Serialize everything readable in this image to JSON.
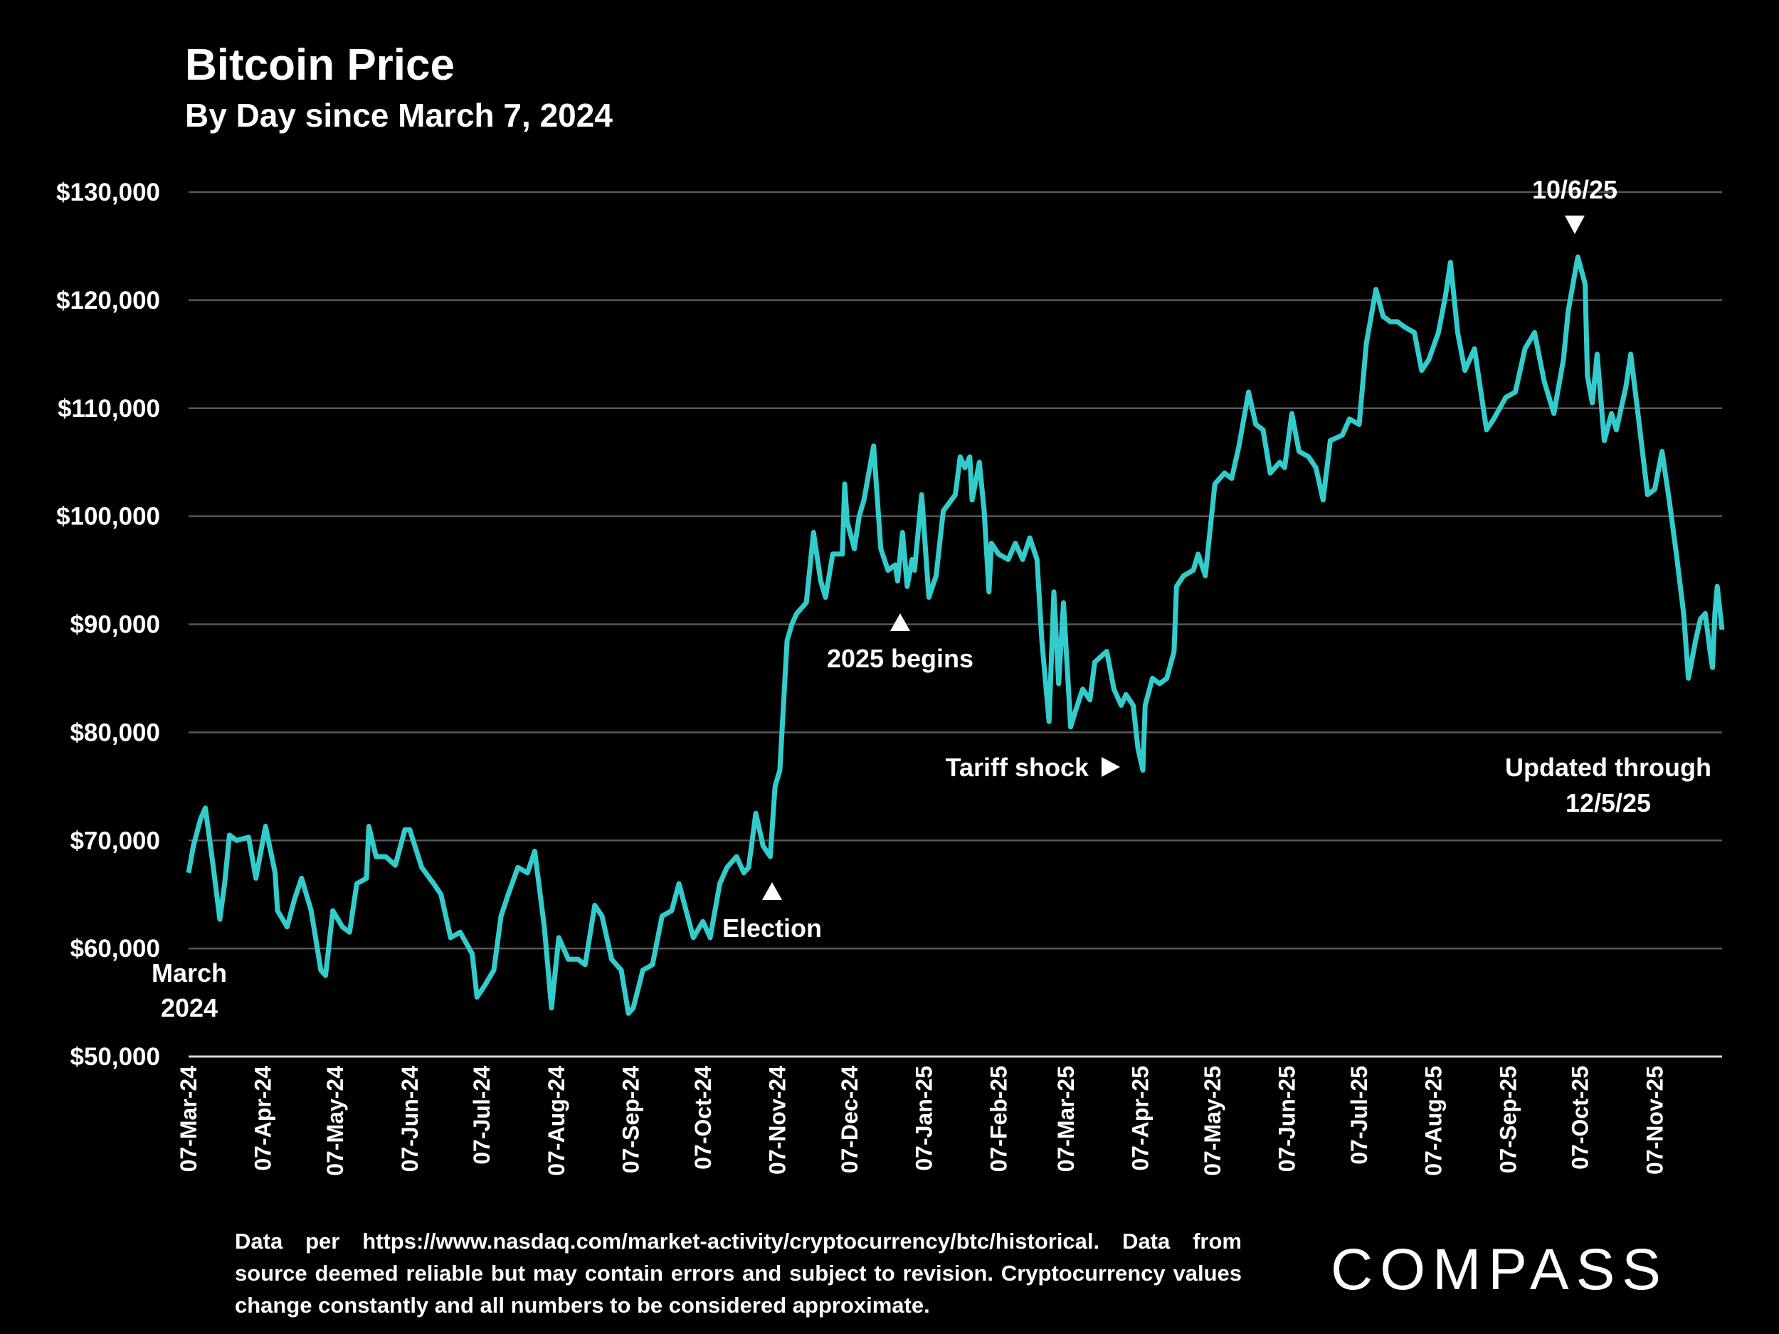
{
  "chart_data": {
    "type": "line",
    "title": "Bitcoin Price",
    "subtitle": "By Day since March 7, 2024",
    "xlabel": "",
    "ylabel": "",
    "ylim": [
      50000,
      130000
    ],
    "xlim": [
      "2024-03-07",
      "2025-12-05"
    ],
    "grid": true,
    "line_color": "#33CCCC",
    "y_ticks": [
      "$50,000",
      "$60,000",
      "$70,000",
      "$80,000",
      "$90,000",
      "$100,000",
      "$110,000",
      "$120,000",
      "$130,000"
    ],
    "y_tick_values": [
      50000,
      60000,
      70000,
      80000,
      90000,
      100000,
      110000,
      120000,
      130000
    ],
    "x_ticks": [
      "07-Mar-24",
      "07-Apr-24",
      "07-May-24",
      "07-Jun-24",
      "07-Jul-24",
      "07-Aug-24",
      "07-Sep-24",
      "07-Oct-24",
      "07-Nov-24",
      "07-Dec-24",
      "07-Jan-25",
      "07-Feb-25",
      "07-Mar-25",
      "07-Apr-25",
      "07-May-25",
      "07-Jun-25",
      "07-Jul-25",
      "07-Aug-25",
      "07-Sep-25",
      "07-Oct-25",
      "07-Nov-25"
    ],
    "x_tick_dates": [
      "2024-03-07",
      "2024-04-07",
      "2024-05-07",
      "2024-06-07",
      "2024-07-07",
      "2024-08-07",
      "2024-09-07",
      "2024-10-07",
      "2024-11-07",
      "2024-12-07",
      "2025-01-07",
      "2025-02-07",
      "2025-03-07",
      "2025-04-07",
      "2025-05-07",
      "2025-06-07",
      "2025-07-07",
      "2025-08-07",
      "2025-09-07",
      "2025-10-07",
      "2025-11-07"
    ],
    "series": [
      {
        "points": [
          [
            "2024-03-07",
            67000
          ],
          [
            "2024-03-09",
            69500
          ],
          [
            "2024-03-12",
            72000
          ],
          [
            "2024-03-14",
            73000
          ],
          [
            "2024-03-17",
            68000
          ],
          [
            "2024-03-20",
            62700
          ],
          [
            "2024-03-22",
            66000
          ],
          [
            "2024-03-24",
            70500
          ],
          [
            "2024-03-27",
            70000
          ],
          [
            "2024-04-01",
            70300
          ],
          [
            "2024-04-04",
            66500
          ],
          [
            "2024-04-08",
            71300
          ],
          [
            "2024-04-12",
            67000
          ],
          [
            "2024-04-13",
            63500
          ],
          [
            "2024-04-17",
            62000
          ],
          [
            "2024-04-20",
            64500
          ],
          [
            "2024-04-23",
            66500
          ],
          [
            "2024-04-27",
            63500
          ],
          [
            "2024-05-01",
            58000
          ],
          [
            "2024-05-03",
            57500
          ],
          [
            "2024-05-06",
            63500
          ],
          [
            "2024-05-10",
            62000
          ],
          [
            "2024-05-13",
            61500
          ],
          [
            "2024-05-16",
            66000
          ],
          [
            "2024-05-20",
            66500
          ],
          [
            "2024-05-21",
            71300
          ],
          [
            "2024-05-24",
            68500
          ],
          [
            "2024-05-28",
            68500
          ],
          [
            "2024-06-01",
            67700
          ],
          [
            "2024-06-05",
            71000
          ],
          [
            "2024-06-07",
            71000
          ],
          [
            "2024-06-12",
            67500
          ],
          [
            "2024-06-17",
            66000
          ],
          [
            "2024-06-20",
            65000
          ],
          [
            "2024-06-24",
            61000
          ],
          [
            "2024-06-28",
            61500
          ],
          [
            "2024-07-03",
            59500
          ],
          [
            "2024-07-05",
            55500
          ],
          [
            "2024-07-08",
            56500
          ],
          [
            "2024-07-12",
            58000
          ],
          [
            "2024-07-15",
            63000
          ],
          [
            "2024-07-18",
            65000
          ],
          [
            "2024-07-22",
            67500
          ],
          [
            "2024-07-26",
            67000
          ],
          [
            "2024-07-29",
            69000
          ],
          [
            "2024-08-02",
            62000
          ],
          [
            "2024-08-05",
            54500
          ],
          [
            "2024-08-08",
            61000
          ],
          [
            "2024-08-12",
            59000
          ],
          [
            "2024-08-16",
            59000
          ],
          [
            "2024-08-19",
            58500
          ],
          [
            "2024-08-23",
            64000
          ],
          [
            "2024-08-26",
            63000
          ],
          [
            "2024-08-30",
            59000
          ],
          [
            "2024-09-03",
            58000
          ],
          [
            "2024-09-06",
            54000
          ],
          [
            "2024-09-08",
            54500
          ],
          [
            "2024-09-12",
            58000
          ],
          [
            "2024-09-16",
            58500
          ],
          [
            "2024-09-20",
            63000
          ],
          [
            "2024-09-24",
            63500
          ],
          [
            "2024-09-27",
            66000
          ],
          [
            "2024-09-30",
            63500
          ],
          [
            "2024-10-03",
            61000
          ],
          [
            "2024-10-07",
            62500
          ],
          [
            "2024-10-10",
            61000
          ],
          [
            "2024-10-14",
            66000
          ],
          [
            "2024-10-17",
            67500
          ],
          [
            "2024-10-21",
            68500
          ],
          [
            "2024-10-24",
            67000
          ],
          [
            "2024-10-26",
            67500
          ],
          [
            "2024-10-29",
            72500
          ],
          [
            "2024-11-01",
            69500
          ],
          [
            "2024-11-04",
            68500
          ],
          [
            "2024-11-06",
            75000
          ],
          [
            "2024-11-08",
            76500
          ],
          [
            "2024-11-11",
            88500
          ],
          [
            "2024-11-13",
            90000
          ],
          [
            "2024-11-15",
            91000
          ],
          [
            "2024-11-19",
            92000
          ],
          [
            "2024-11-22",
            98500
          ],
          [
            "2024-11-25",
            94000
          ],
          [
            "2024-11-27",
            92500
          ],
          [
            "2024-11-30",
            96500
          ],
          [
            "2024-12-04",
            96500
          ],
          [
            "2024-12-05",
            103000
          ],
          [
            "2024-12-06",
            99500
          ],
          [
            "2024-12-09",
            97000
          ],
          [
            "2024-12-11",
            100000
          ],
          [
            "2024-12-13",
            101500
          ],
          [
            "2024-12-15",
            104000
          ],
          [
            "2024-12-17",
            106500
          ],
          [
            "2024-12-20",
            97000
          ],
          [
            "2024-12-23",
            95000
          ],
          [
            "2024-12-26",
            95500
          ],
          [
            "2024-12-27",
            94000
          ],
          [
            "2024-12-29",
            98500
          ],
          [
            "2024-12-31",
            93500
          ],
          [
            "2025-01-02",
            96000
          ],
          [
            "2025-01-03",
            95000
          ],
          [
            "2025-01-06",
            102000
          ],
          [
            "2025-01-09",
            92500
          ],
          [
            "2025-01-12",
            94500
          ],
          [
            "2025-01-15",
            100500
          ],
          [
            "2025-01-20",
            102000
          ],
          [
            "2025-01-22",
            105500
          ],
          [
            "2025-01-24",
            104500
          ],
          [
            "2025-01-26",
            105500
          ],
          [
            "2025-01-27",
            101500
          ],
          [
            "2025-01-30",
            105000
          ],
          [
            "2025-02-01",
            100500
          ],
          [
            "2025-02-03",
            93000
          ],
          [
            "2025-02-04",
            97500
          ],
          [
            "2025-02-07",
            96500
          ],
          [
            "2025-02-11",
            96000
          ],
          [
            "2025-02-14",
            97500
          ],
          [
            "2025-02-17",
            96000
          ],
          [
            "2025-02-20",
            98000
          ],
          [
            "2025-02-23",
            96000
          ],
          [
            "2025-02-25",
            88500
          ],
          [
            "2025-02-28",
            81000
          ],
          [
            "2025-03-02",
            93000
          ],
          [
            "2025-03-04",
            84500
          ],
          [
            "2025-03-06",
            92000
          ],
          [
            "2025-03-09",
            80500
          ],
          [
            "2025-03-11",
            82000
          ],
          [
            "2025-03-14",
            84000
          ],
          [
            "2025-03-17",
            83000
          ],
          [
            "2025-03-19",
            86500
          ],
          [
            "2025-03-24",
            87500
          ],
          [
            "2025-03-27",
            84000
          ],
          [
            "2025-03-30",
            82500
          ],
          [
            "2025-04-01",
            83500
          ],
          [
            "2025-04-04",
            82500
          ],
          [
            "2025-04-06",
            78500
          ],
          [
            "2025-04-08",
            76500
          ],
          [
            "2025-04-09",
            82500
          ],
          [
            "2025-04-12",
            85000
          ],
          [
            "2025-04-15",
            84500
          ],
          [
            "2025-04-18",
            85000
          ],
          [
            "2025-04-21",
            87500
          ],
          [
            "2025-04-22",
            93500
          ],
          [
            "2025-04-25",
            94500
          ],
          [
            "2025-04-29",
            95000
          ],
          [
            "2025-05-01",
            96500
          ],
          [
            "2025-05-04",
            94500
          ],
          [
            "2025-05-08",
            103000
          ],
          [
            "2025-05-12",
            104000
          ],
          [
            "2025-05-15",
            103500
          ],
          [
            "2025-05-18",
            106500
          ],
          [
            "2025-05-22",
            111500
          ],
          [
            "2025-05-25",
            108500
          ],
          [
            "2025-05-28",
            108000
          ],
          [
            "2025-05-31",
            104000
          ],
          [
            "2025-06-04",
            105000
          ],
          [
            "2025-06-06",
            104500
          ],
          [
            "2025-06-09",
            109500
          ],
          [
            "2025-06-12",
            106000
          ],
          [
            "2025-06-16",
            105500
          ],
          [
            "2025-06-19",
            104500
          ],
          [
            "2025-06-22",
            101500
          ],
          [
            "2025-06-25",
            107000
          ],
          [
            "2025-06-30",
            107500
          ],
          [
            "2025-07-03",
            109000
          ],
          [
            "2025-07-07",
            108500
          ],
          [
            "2025-07-10",
            116000
          ],
          [
            "2025-07-14",
            121000
          ],
          [
            "2025-07-17",
            118500
          ],
          [
            "2025-07-20",
            118000
          ],
          [
            "2025-07-23",
            118000
          ],
          [
            "2025-07-26",
            117500
          ],
          [
            "2025-07-30",
            117000
          ],
          [
            "2025-08-02",
            113500
          ],
          [
            "2025-08-05",
            114500
          ],
          [
            "2025-08-09",
            117000
          ],
          [
            "2025-08-12",
            120500
          ],
          [
            "2025-08-14",
            123500
          ],
          [
            "2025-08-17",
            117000
          ],
          [
            "2025-08-20",
            113500
          ],
          [
            "2025-08-24",
            115500
          ],
          [
            "2025-08-29",
            108000
          ],
          [
            "2025-09-01",
            109000
          ],
          [
            "2025-09-06",
            111000
          ],
          [
            "2025-09-10",
            111500
          ],
          [
            "2025-09-14",
            115500
          ],
          [
            "2025-09-18",
            117000
          ],
          [
            "2025-09-22",
            112500
          ],
          [
            "2025-09-26",
            109500
          ],
          [
            "2025-09-30",
            114500
          ],
          [
            "2025-10-02",
            119000
          ],
          [
            "2025-10-06",
            124000
          ],
          [
            "2025-10-09",
            121500
          ],
          [
            "2025-10-10",
            113000
          ],
          [
            "2025-10-12",
            110500
          ],
          [
            "2025-10-14",
            115000
          ],
          [
            "2025-10-17",
            107000
          ],
          [
            "2025-10-20",
            109500
          ],
          [
            "2025-10-22",
            108000
          ],
          [
            "2025-10-26",
            112000
          ],
          [
            "2025-10-28",
            115000
          ],
          [
            "2025-10-31",
            109500
          ],
          [
            "2025-11-04",
            102000
          ],
          [
            "2025-11-07",
            102500
          ],
          [
            "2025-11-10",
            106000
          ],
          [
            "2025-11-13",
            101500
          ],
          [
            "2025-11-16",
            96500
          ],
          [
            "2025-11-19",
            91000
          ],
          [
            "2025-11-21",
            85000
          ],
          [
            "2025-11-24",
            88500
          ],
          [
            "2025-11-26",
            90500
          ],
          [
            "2025-11-28",
            91000
          ],
          [
            "2025-11-30",
            87500
          ],
          [
            "2025-12-01",
            86000
          ],
          [
            "2025-12-02",
            91000
          ],
          [
            "2025-12-03",
            93500
          ],
          [
            "2025-12-05",
            89500
          ]
        ]
      }
    ],
    "annotations": {
      "start_line1": "March",
      "start_line2": "2024",
      "election": "Election",
      "year_begins": "2025 begins",
      "tariff": "Tariff shock",
      "peak": "10/6/25",
      "updated_line1": "Updated through",
      "updated_line2": "12/5/25"
    }
  },
  "footnote": "Data per https://www.nasdaq.com/market-activity/cryptocurrency/btc/historical. Data from source deemed reliable but may contain errors and subject to revision. Cryptocurrency values change constantly and all numbers to be considered approximate.",
  "logo": "COMPASS"
}
